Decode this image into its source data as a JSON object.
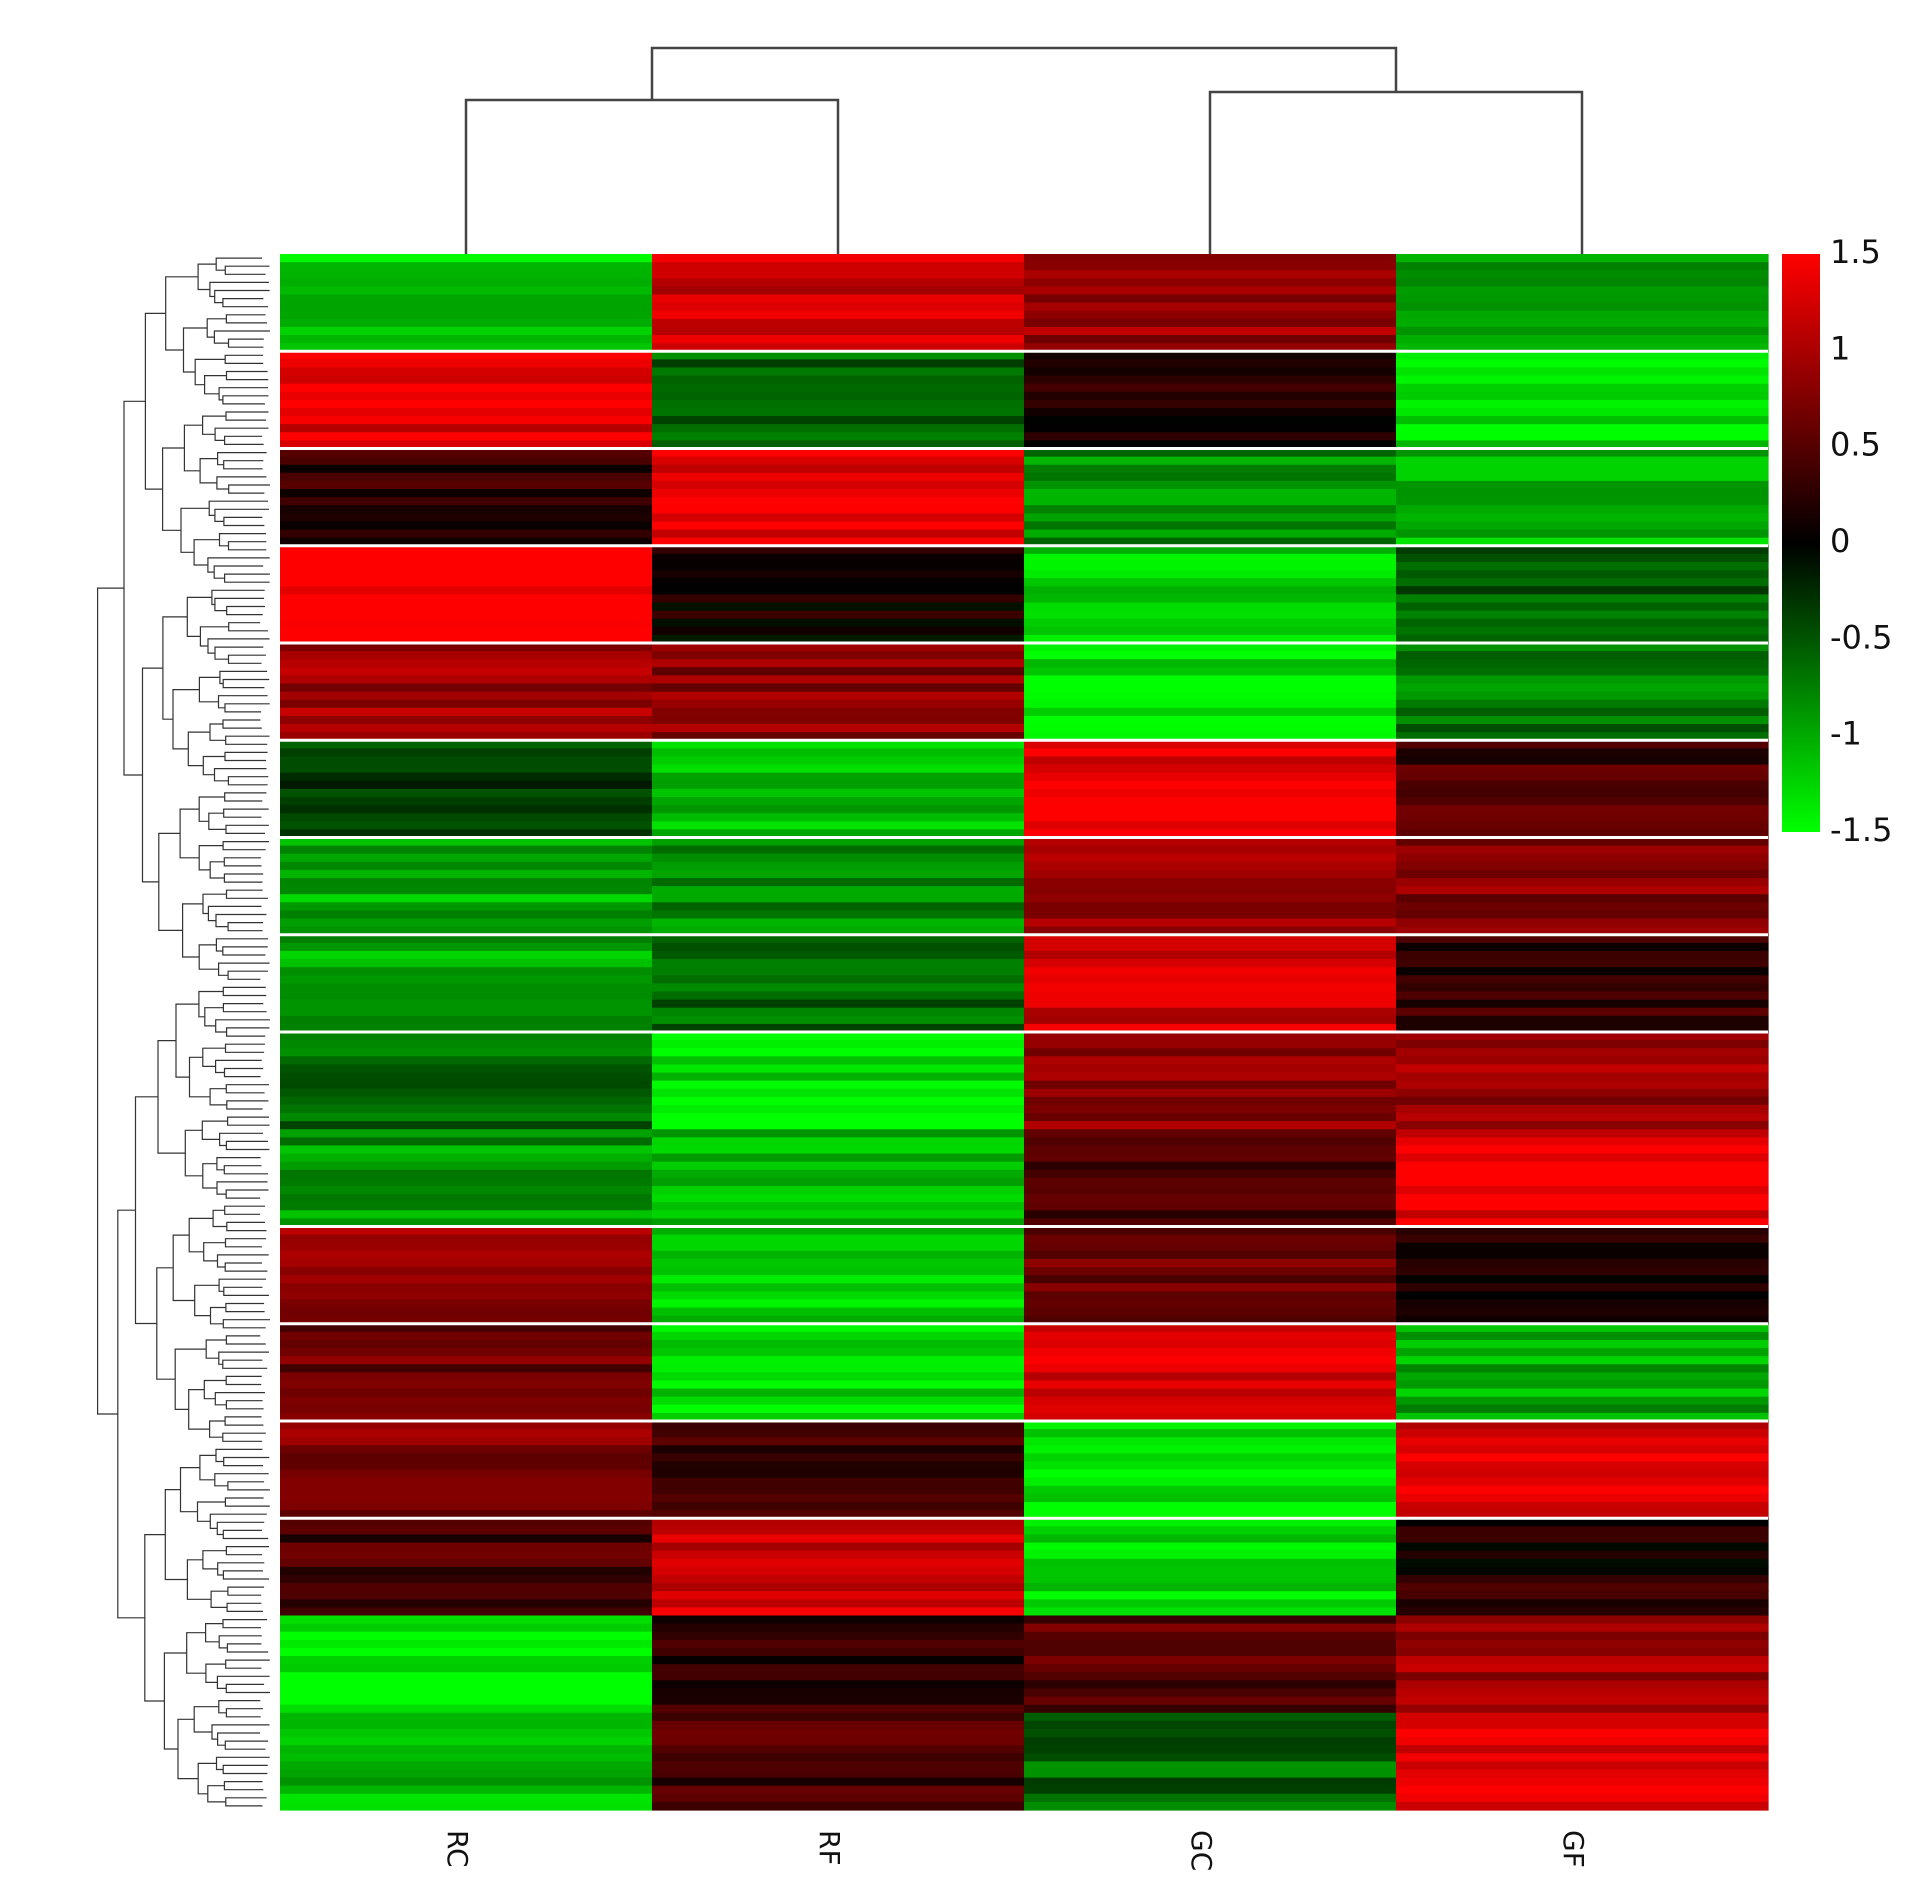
{
  "chart_data": {
    "type": "heatmap",
    "title": "",
    "xlabel": "",
    "ylabel": "",
    "columns": [
      "RC",
      "RF",
      "GC",
      "GF"
    ],
    "column_dendrogram": "((RC,RF),(GC,GF))",
    "row_dendrogram": "shown",
    "color_scale": {
      "min": -1.5,
      "max": 1.5,
      "low_color": "#00ff00",
      "mid_color": "#000000",
      "high_color": "#ff0000",
      "ticks": [
        "1.5",
        "1",
        "0.5",
        "0",
        "-0.5",
        "-1",
        "-1.5"
      ]
    },
    "row_blocks": [
      {
        "values": [
          -1.2,
          1.2,
          0.9,
          -0.9
        ]
      },
      {
        "values": [
          1.3,
          -0.6,
          0.2,
          -1.3
        ]
      },
      {
        "values": [
          0.3,
          1.4,
          -0.8,
          -1.1
        ]
      },
      {
        "values": [
          1.5,
          0.1,
          -1.3,
          -0.6
        ]
      },
      {
        "values": [
          0.9,
          0.8,
          -1.3,
          -0.7
        ]
      },
      {
        "values": [
          -0.4,
          -1.1,
          1.4,
          0.4
        ]
      },
      {
        "values": [
          -1.0,
          -0.8,
          0.9,
          0.8
        ]
      },
      {
        "values": [
          -1.0,
          -0.6,
          1.2,
          0.3
        ]
      },
      {
        "values": [
          -0.6,
          -1.3,
          0.9,
          0.9
        ]
      },
      {
        "values": [
          -0.9,
          -1.1,
          0.4,
          1.4
        ]
      },
      {
        "values": [
          0.9,
          -1.2,
          0.6,
          0.2
        ]
      },
      {
        "values": [
          0.6,
          -1.3,
          1.2,
          -1.0
        ]
      },
      {
        "values": [
          0.8,
          0.3,
          -1.4,
          1.3
        ]
      },
      {
        "values": [
          0.4,
          1.2,
          -1.3,
          0.2
        ]
      },
      {
        "values": [
          -1.4,
          0.3,
          0.5,
          1.0
        ]
      },
      {
        "values": [
          -1.1,
          0.4,
          -0.6,
          1.3
        ]
      }
    ]
  }
}
